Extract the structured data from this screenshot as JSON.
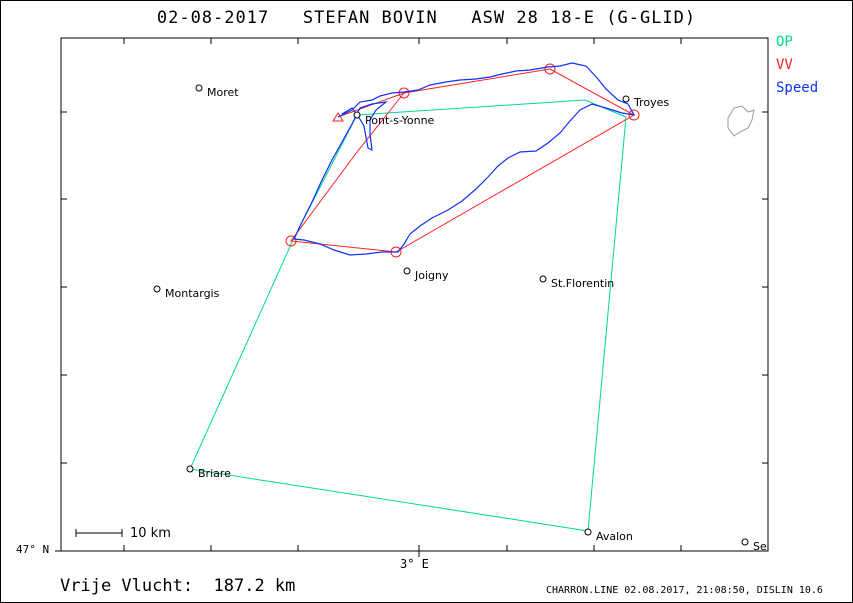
{
  "title": "02-08-2017   STEFAN BOVIN   ASW 28 18-E (G-GLID)",
  "legend": [
    {
      "label": "OP",
      "color": "#00d890"
    },
    {
      "label": "VV",
      "color": "#ff2020"
    },
    {
      "label": "Speed",
      "color": "#1030ff"
    }
  ],
  "axes": {
    "lat_label": "47° N",
    "lon_label": "3° E"
  },
  "scale": {
    "label": "10 km"
  },
  "towns": [
    {
      "name": "Moret",
      "icon": "town-circle-icon"
    },
    {
      "name": "Pont-s-Yonne",
      "icon": "town-circle-icon"
    },
    {
      "name": "Troyes",
      "icon": "town-circle-icon"
    },
    {
      "name": "Montargis",
      "icon": "town-circle-icon"
    },
    {
      "name": "Joigny",
      "icon": "town-circle-icon"
    },
    {
      "name": "St.Florentin",
      "icon": "town-circle-icon"
    },
    {
      "name": "Briare",
      "icon": "town-circle-icon"
    },
    {
      "name": "Avalon",
      "icon": "town-circle-icon"
    },
    {
      "name": "Se",
      "icon": "town-circle-icon"
    }
  ],
  "footer": {
    "distance": "Vrije Vlucht:  187.2 km",
    "meta": "CHARRON.LINE 02.08.2017, 21:08:50, DISLIN 10.6"
  }
}
